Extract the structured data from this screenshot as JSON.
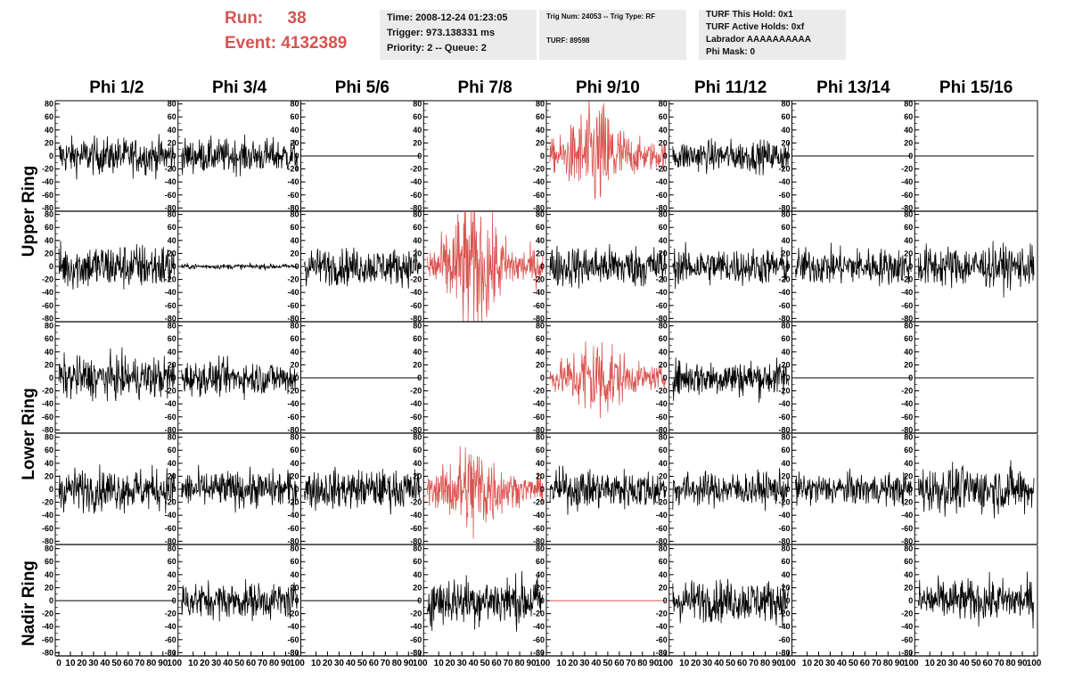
{
  "header": {
    "run_label": "Run:",
    "run_value": "38",
    "event_label": "Event:",
    "event_value": "4132389"
  },
  "info_boxes": [
    {
      "lines": [
        "Time: 2008-12-24 01:23:05",
        "Trigger: 973.138331 ms",
        "Priority: 2 -- Queue: 2"
      ]
    },
    {
      "lines": [
        "Trig Num: 24053 -- Trig Type: RF",
        "TURF: 89598"
      ]
    },
    {
      "lines": [
        "TURF This Hold: 0x1",
        "TURF Active Holds: 0xf",
        "Labrador AAAAAAAAAA",
        "Phi Mask: 0"
      ]
    }
  ],
  "colors": {
    "highlight": "#d9534f",
    "trace": "#000000",
    "panel_bg": "#ebebeb"
  },
  "chart_data": {
    "type": "line",
    "description_of_grid": "5 rows x 8 columns of waveform panels",
    "columns": [
      "Phi 1/2",
      "Phi 3/4",
      "Phi 5/6",
      "Phi 7/8",
      "Phi 9/10",
      "Phi 11/12",
      "Phi 13/14",
      "Phi 15/16"
    ],
    "ring_labels": [
      "Upper Ring",
      "Lower Ring",
      "Nadir Ring"
    ],
    "ylim": [
      -85,
      85
    ],
    "y_ticks": [
      80,
      60,
      40,
      20,
      0,
      -20,
      -40,
      -60,
      -80
    ],
    "y_tick_labels": [
      "80",
      "60",
      "40",
      "20",
      "0",
      "-20",
      "-40",
      "-60",
      "-80"
    ],
    "xlim": [
      0,
      100
    ],
    "x_tick_labels": [
      "0",
      "10",
      "20",
      "30",
      "40",
      "50",
      "60",
      "70",
      "80",
      "90",
      "100"
    ],
    "panels": [
      [
        {
          "amp": 14,
          "color": "black"
        },
        {
          "amp": 13,
          "color": "black"
        },
        {
          "amp": 0,
          "color": "black"
        },
        {
          "amp": null,
          "color": "black"
        },
        {
          "amp": 24,
          "color": "red",
          "burst": true
        },
        {
          "amp": 12,
          "color": "black"
        },
        {
          "amp": 0,
          "color": "black"
        },
        {
          "amp": 0,
          "color": "black"
        }
      ],
      [
        {
          "amp": 18,
          "color": "black"
        },
        {
          "amp": 2,
          "color": "black"
        },
        {
          "amp": 14,
          "color": "black"
        },
        {
          "amp": 30,
          "color": "red",
          "burst": true
        },
        {
          "amp": 16,
          "color": "black"
        },
        {
          "amp": 14,
          "color": "black"
        },
        {
          "amp": 14,
          "color": "black"
        },
        {
          "amp": 16,
          "color": "black"
        }
      ],
      [
        {
          "amp": 16,
          "color": "black"
        },
        {
          "amp": 13,
          "color": "black"
        },
        {
          "amp": 0,
          "color": "black"
        },
        {
          "amp": null,
          "color": "black"
        },
        {
          "amp": 20,
          "color": "red",
          "burst": true
        },
        {
          "amp": 14,
          "color": "black"
        },
        {
          "amp": 0,
          "color": "black"
        },
        {
          "amp": 0,
          "color": "black"
        }
      ],
      [
        {
          "amp": 16,
          "color": "black"
        },
        {
          "amp": 14,
          "color": "black"
        },
        {
          "amp": 15,
          "color": "black"
        },
        {
          "amp": 22,
          "color": "red",
          "burst": true
        },
        {
          "amp": 15,
          "color": "black"
        },
        {
          "amp": 13,
          "color": "black"
        },
        {
          "amp": 12,
          "color": "black"
        },
        {
          "amp": 18,
          "color": "black"
        }
      ],
      [
        {
          "amp": 0,
          "color": "black"
        },
        {
          "amp": 14,
          "color": "black"
        },
        {
          "amp": 0,
          "color": "black"
        },
        {
          "amp": 19,
          "color": "black"
        },
        {
          "amp": 0,
          "color": "red"
        },
        {
          "amp": 16,
          "color": "black"
        },
        {
          "amp": null,
          "color": "black"
        },
        {
          "amp": 16,
          "color": "black"
        }
      ]
    ]
  }
}
